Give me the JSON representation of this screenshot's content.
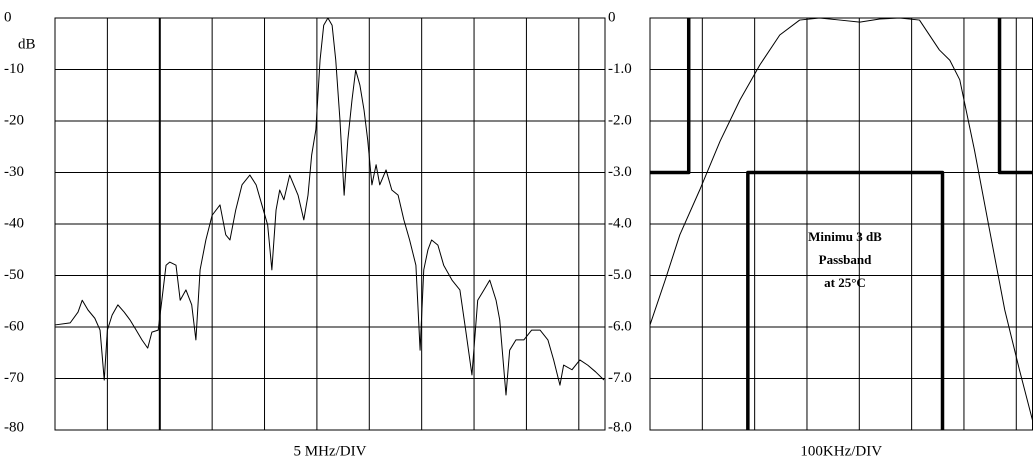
{
  "chart_data": [
    {
      "type": "line",
      "ylabel": "dB",
      "xlabel": "5 MHz/DIV",
      "color": "#000000",
      "xlim": [
        0,
        10.5
      ],
      "ylim": [
        -80,
        0
      ],
      "yticks": [
        0,
        -10,
        -20,
        -30,
        -40,
        -50,
        -60,
        -70,
        -80
      ],
      "grid": true,
      "x": [
        0,
        0.29,
        0.44,
        0.52,
        0.63,
        0.76,
        0.86,
        0.94,
        1.0,
        1.09,
        1.2,
        1.32,
        1.43,
        1.55,
        1.66,
        1.77,
        1.85,
        1.97,
        2.04,
        2.12,
        2.19,
        2.31,
        2.39,
        2.5,
        2.61,
        2.69,
        2.77,
        2.88,
        3.0,
        3.15,
        3.26,
        3.34,
        3.45,
        3.57,
        3.72,
        3.84,
        3.95,
        4.06,
        4.14,
        4.22,
        4.29,
        4.37,
        4.48,
        4.64,
        4.75,
        4.83,
        4.9,
        4.98,
        5.06,
        5.13,
        5.21,
        5.29,
        5.36,
        5.44,
        5.52,
        5.59,
        5.67,
        5.74,
        5.82,
        5.9,
        5.97,
        6.05,
        6.13,
        6.2,
        6.32,
        6.43,
        6.55,
        6.66,
        6.77,
        6.89,
        6.97,
        7.04,
        7.12,
        7.19,
        7.31,
        7.42,
        7.58,
        7.73,
        7.84,
        7.96,
        8.07,
        8.19,
        8.3,
        8.42,
        8.49,
        8.61,
        8.68,
        8.8,
        8.95,
        9.1,
        9.26,
        9.41,
        9.52,
        9.64,
        9.71,
        9.87,
        10.02,
        10.17,
        10.32,
        10.48
      ],
      "values": [
        -59.6,
        -59.2,
        -57.1,
        -54.8,
        -56.7,
        -58.3,
        -60.6,
        -70.3,
        -60.6,
        -57.7,
        -55.7,
        -57.1,
        -58.6,
        -60.6,
        -62.5,
        -64.1,
        -61.0,
        -60.6,
        -54.8,
        -48.0,
        -47.4,
        -48.0,
        -54.8,
        -52.8,
        -55.7,
        -62.5,
        -48.9,
        -43.1,
        -38.3,
        -36.3,
        -42.1,
        -43.1,
        -37.3,
        -32.4,
        -30.5,
        -32.4,
        -36.3,
        -40.2,
        -48.9,
        -37.3,
        -33.4,
        -35.3,
        -30.5,
        -34.4,
        -39.2,
        -34.4,
        -26.6,
        -21.7,
        -8.2,
        -1.4,
        0,
        -1.4,
        -8.2,
        -19.8,
        -34.4,
        -23.7,
        -15.9,
        -10.1,
        -13.0,
        -17.9,
        -23.7,
        -32.4,
        -28.5,
        -32.4,
        -29.5,
        -33.4,
        -34.4,
        -39.2,
        -43.1,
        -48.0,
        -64.5,
        -48.9,
        -45.0,
        -43.1,
        -44.1,
        -48.0,
        -50.9,
        -52.8,
        -60.6,
        -69.3,
        -54.8,
        -52.8,
        -50.9,
        -54.8,
        -58.6,
        -73.2,
        -64.5,
        -62.5,
        -62.5,
        -60.6,
        -60.6,
        -62.5,
        -66.4,
        -71.3,
        -67.4,
        -68.3,
        -66.4,
        -67.4,
        -68.7,
        -70.3
      ]
    },
    {
      "type": "line",
      "xlabel": "100KHz/DIV",
      "xlim": [
        0,
        7.31
      ],
      "ylim": [
        -8,
        0
      ],
      "yticks": [
        0,
        {
          "value": -1,
          "label": "-1.0"
        },
        {
          "value": -2,
          "label": "-2.0"
        },
        {
          "value": -3,
          "label": "-3.0"
        },
        {
          "value": -4,
          "label": "-4.0"
        },
        {
          "value": -5,
          "label": "-5.0"
        },
        {
          "value": -6,
          "label": "-6.0"
        },
        {
          "value": -7,
          "label": "-7.0"
        },
        {
          "value": -8,
          "label": "-8.0"
        }
      ],
      "grid": true,
      "annotation": [
        "Minimu 3 dB",
        "Passband",
        "at 25°C"
      ],
      "series": [
        {
          "color": "#000000",
          "linewidth": 1,
          "x": [
            0,
            0.29,
            0.57,
            0.95,
            1.34,
            1.72,
            2.1,
            2.48,
            2.86,
            3.24,
            3.63,
            4.01,
            4.39,
            4.77,
            5.15,
            5.53,
            5.73,
            5.92,
            6.2,
            6.49,
            6.78,
            7.06,
            7.31
          ],
          "values": [
            -5.96,
            -5.09,
            -4.21,
            -3.34,
            -2.39,
            -1.59,
            -0.91,
            -0.33,
            -0.04,
            0,
            -0.04,
            -0.08,
            -0.02,
            0,
            -0.04,
            -0.62,
            -0.82,
            -1.2,
            -2.56,
            -4.12,
            -5.67,
            -6.83,
            -7.81
          ]
        },
        {
          "color": "#000000",
          "linewidth": 3.5,
          "x": [
            0,
            0.74,
            0.74,
            1.3,
            1.87,
            1.87,
            5.59,
            5.59,
            6.1,
            6.68,
            6.68,
            7.31
          ],
          "values": [
            -3,
            -3,
            0,
            null,
            -8,
            -3,
            -3,
            -8,
            null,
            0,
            -3,
            -3
          ]
        }
      ]
    }
  ]
}
